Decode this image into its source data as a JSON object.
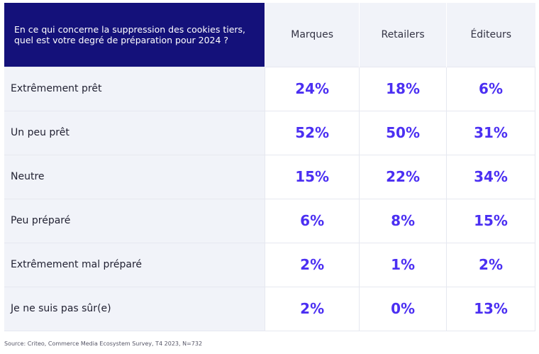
{
  "chart_data": {
    "type": "table",
    "question": "En ce qui concerne la suppression des cookies tiers, quel est votre degré de préparation pour 2024 ?",
    "columns": [
      "Marques",
      "Retailers",
      "Éditeurs"
    ],
    "rows": [
      {
        "label": "Extrêmement prêt",
        "values": [
          "24%",
          "18%",
          "6%"
        ]
      },
      {
        "label": "Un peu prêt",
        "values": [
          "52%",
          "50%",
          "31%"
        ]
      },
      {
        "label": "Neutre",
        "values": [
          "15%",
          "22%",
          "34%"
        ]
      },
      {
        "label": "Peu préparé",
        "values": [
          "6%",
          "8%",
          "15%"
        ]
      },
      {
        "label": "Extrêmement mal préparé",
        "values": [
          "2%",
          "1%",
          "2%"
        ]
      },
      {
        "label": "Je ne suis pas sûr(e)",
        "values": [
          "2%",
          "0%",
          "13%"
        ]
      }
    ],
    "source": "Source: Criteo, Commerce Media Ecosystem Survey, T4 2023, N=732"
  },
  "colors": {
    "header_bg": "#14117a",
    "label_bg": "#f1f3f9",
    "value_text": "#4b2ff2"
  }
}
